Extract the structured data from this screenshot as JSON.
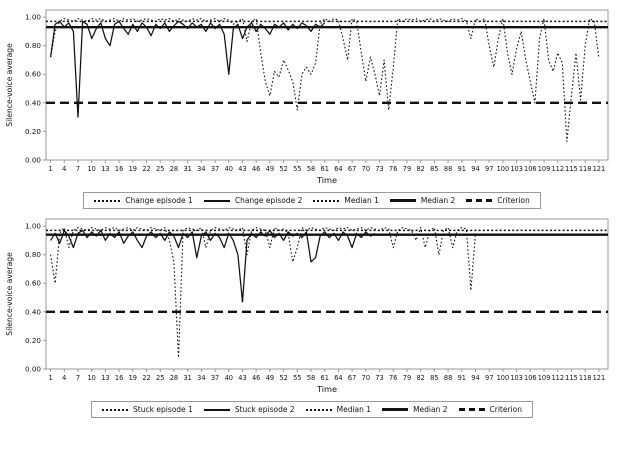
{
  "colors": {
    "line": "#111111",
    "frame": "#999999",
    "text": "#111111",
    "legend_border": "#999999",
    "background": "#ffffff"
  },
  "chart_data": [
    {
      "id": "change-chart",
      "type": "line",
      "title": "",
      "xlabel": "Time",
      "ylabel": "Silence-voice average",
      "xlim": [
        0,
        123
      ],
      "ylim": [
        0,
        1.05
      ],
      "grid": false,
      "legend_position": "bottom",
      "xticks": [
        1,
        4,
        7,
        10,
        13,
        16,
        19,
        22,
        25,
        28,
        31,
        34,
        37,
        40,
        43,
        46,
        49,
        52,
        55,
        58,
        61,
        64,
        67,
        70,
        73,
        76,
        79,
        82,
        85,
        88,
        91,
        94,
        97,
        100,
        103,
        106,
        109,
        112,
        115,
        118,
        121
      ],
      "yticks": [
        "0.00",
        "0.20",
        "0.40",
        "0.60",
        "0.80",
        "1.00"
      ],
      "series": [
        {
          "name": "Change episode 1",
          "style": "dotted",
          "x_start": 1,
          "values": [
            0.72,
            0.9,
            0.97,
            0.99,
            0.98,
            0.97,
            0.99,
            0.98,
            0.97,
            0.99,
            0.98,
            0.99,
            0.97,
            0.98,
            0.99,
            0.97,
            0.99,
            0.98,
            0.99,
            0.97,
            0.98,
            0.99,
            0.98,
            0.97,
            0.99,
            0.98,
            0.99,
            0.97,
            0.99,
            0.98,
            0.97,
            0.99,
            0.98,
            0.99,
            0.97,
            0.98,
            0.99,
            0.97,
            0.99,
            0.98,
            0.95,
            0.97,
            0.99,
            0.83,
            0.97,
            0.99,
            0.75,
            0.55,
            0.45,
            0.62,
            0.58,
            0.7,
            0.63,
            0.55,
            0.35,
            0.6,
            0.65,
            0.6,
            0.68,
            0.95,
            0.99,
            0.97,
            0.99,
            0.98,
            0.85,
            0.7,
            0.99,
            0.97,
            0.75,
            0.55,
            0.72,
            0.6,
            0.45,
            0.7,
            0.35,
            0.65,
            0.99,
            0.97,
            0.99,
            0.98,
            0.99,
            0.97,
            0.98,
            0.99,
            0.97,
            0.99,
            0.98,
            0.97,
            0.99,
            0.98,
            0.99,
            0.97,
            0.85,
            0.99,
            0.97,
            0.99,
            0.8,
            0.65,
            0.85,
            0.99,
            0.75,
            0.6,
            0.78,
            0.9,
            0.7,
            0.55,
            0.4,
            0.85,
            0.99,
            0.7,
            0.62,
            0.75,
            0.68,
            0.13,
            0.45,
            0.75,
            0.42,
            0.8,
            0.99,
            0.97,
            0.71
          ]
        },
        {
          "name": "Change episode 2",
          "style": "solid",
          "x_start": 1,
          "values": [
            0.72,
            0.95,
            0.97,
            0.93,
            0.96,
            0.9,
            0.3,
            0.97,
            0.95,
            0.85,
            0.92,
            0.96,
            0.85,
            0.8,
            0.95,
            0.97,
            0.92,
            0.88,
            0.95,
            0.9,
            0.96,
            0.93,
            0.87,
            0.95,
            0.92,
            0.96,
            0.9,
            0.94,
            0.97,
            0.95,
            0.92,
            0.96,
            0.93,
            0.95,
            0.9,
            0.96,
            0.92,
            0.95,
            0.88,
            0.6,
            0.92,
            0.95,
            0.85,
            0.93,
            0.96,
            0.9,
            0.95,
            0.92,
            0.88,
            0.95,
            0.93,
            0.96,
            0.91,
            0.95,
            0.92,
            0.96,
            0.94,
            0.9,
            0.95,
            0.93,
            0.96
          ]
        },
        {
          "name": "Median 1",
          "style": "dotted-h",
          "value": 0.97
        },
        {
          "name": "Median 2",
          "style": "solid-thick-h",
          "value": 0.93
        },
        {
          "name": "Criterion",
          "style": "dashed-h",
          "value": 0.4
        }
      ]
    },
    {
      "id": "stuck-chart",
      "type": "line",
      "title": "",
      "xlabel": "Time",
      "ylabel": "Silence-voice average",
      "xlim": [
        0,
        123
      ],
      "ylim": [
        0,
        1.05
      ],
      "grid": false,
      "legend_position": "bottom",
      "xticks": [
        1,
        4,
        7,
        10,
        13,
        16,
        19,
        22,
        25,
        28,
        31,
        34,
        37,
        40,
        43,
        46,
        49,
        52,
        55,
        58,
        61,
        64,
        67,
        70,
        73,
        76,
        79,
        82,
        85,
        88,
        91,
        94,
        97,
        100,
        103,
        106,
        109,
        112,
        115,
        118,
        121
      ],
      "yticks": [
        "0.00",
        "0.20",
        "0.40",
        "0.60",
        "0.80",
        "1.00"
      ],
      "series": [
        {
          "name": "Stuck episode 1",
          "style": "dotted",
          "x_start": 1,
          "values": [
            0.8,
            0.6,
            0.95,
            0.99,
            0.85,
            0.97,
            0.99,
            0.98,
            0.97,
            0.99,
            0.98,
            0.97,
            0.99,
            0.98,
            0.99,
            0.97,
            0.98,
            0.99,
            0.97,
            0.99,
            0.98,
            0.97,
            0.99,
            0.98,
            0.97,
            0.99,
            0.9,
            0.75,
            0.08,
            0.97,
            0.99,
            0.98,
            0.97,
            0.99,
            0.85,
            0.97,
            0.99,
            0.98,
            0.97,
            0.99,
            0.98,
            0.97,
            0.99,
            0.8,
            0.97,
            0.99,
            0.98,
            0.97,
            0.85,
            0.99,
            0.97,
            0.98,
            0.95,
            0.75,
            0.85,
            0.99,
            0.97,
            0.99,
            0.98,
            0.97,
            0.99,
            0.98,
            0.97,
            0.99,
            0.98,
            0.99,
            0.97,
            0.98,
            0.99,
            0.97,
            0.99,
            0.98,
            0.97,
            0.99,
            0.98,
            0.85,
            0.97,
            0.99,
            0.98,
            0.97,
            0.9,
            0.99,
            0.85,
            0.97,
            0.99,
            0.8,
            0.97,
            0.99,
            0.85,
            0.97,
            0.99,
            0.98,
            0.55,
            0.95
          ]
        },
        {
          "name": "Stuck episode 2",
          "style": "solid",
          "x_start": 1,
          "values": [
            0.9,
            0.95,
            0.88,
            0.97,
            0.93,
            0.85,
            0.95,
            0.97,
            0.92,
            0.96,
            0.93,
            0.97,
            0.9,
            0.95,
            0.92,
            0.96,
            0.88,
            0.93,
            0.96,
            0.9,
            0.85,
            0.93,
            0.96,
            0.92,
            0.95,
            0.9,
            0.96,
            0.93,
            0.85,
            0.95,
            0.92,
            0.96,
            0.78,
            0.93,
            0.96,
            0.9,
            0.95,
            0.92,
            0.85,
            0.95,
            0.9,
            0.8,
            0.47,
            0.9,
            0.95,
            0.92,
            0.96,
            0.93,
            0.97,
            0.92,
            0.95,
            0.9,
            0.96,
            0.93,
            0.95,
            0.92,
            0.96,
            0.75,
            0.78,
            0.93,
            0.96,
            0.92,
            0.95,
            0.9,
            0.96,
            0.93,
            0.85,
            0.95,
            0.92,
            0.96,
            0.93,
            0.95
          ]
        },
        {
          "name": "Median 1",
          "style": "dotted-h",
          "value": 0.97
        },
        {
          "name": "Median 2",
          "style": "solid-thick-h",
          "value": 0.94
        },
        {
          "name": "Criterion",
          "style": "dashed-h",
          "value": 0.4
        }
      ]
    }
  ]
}
